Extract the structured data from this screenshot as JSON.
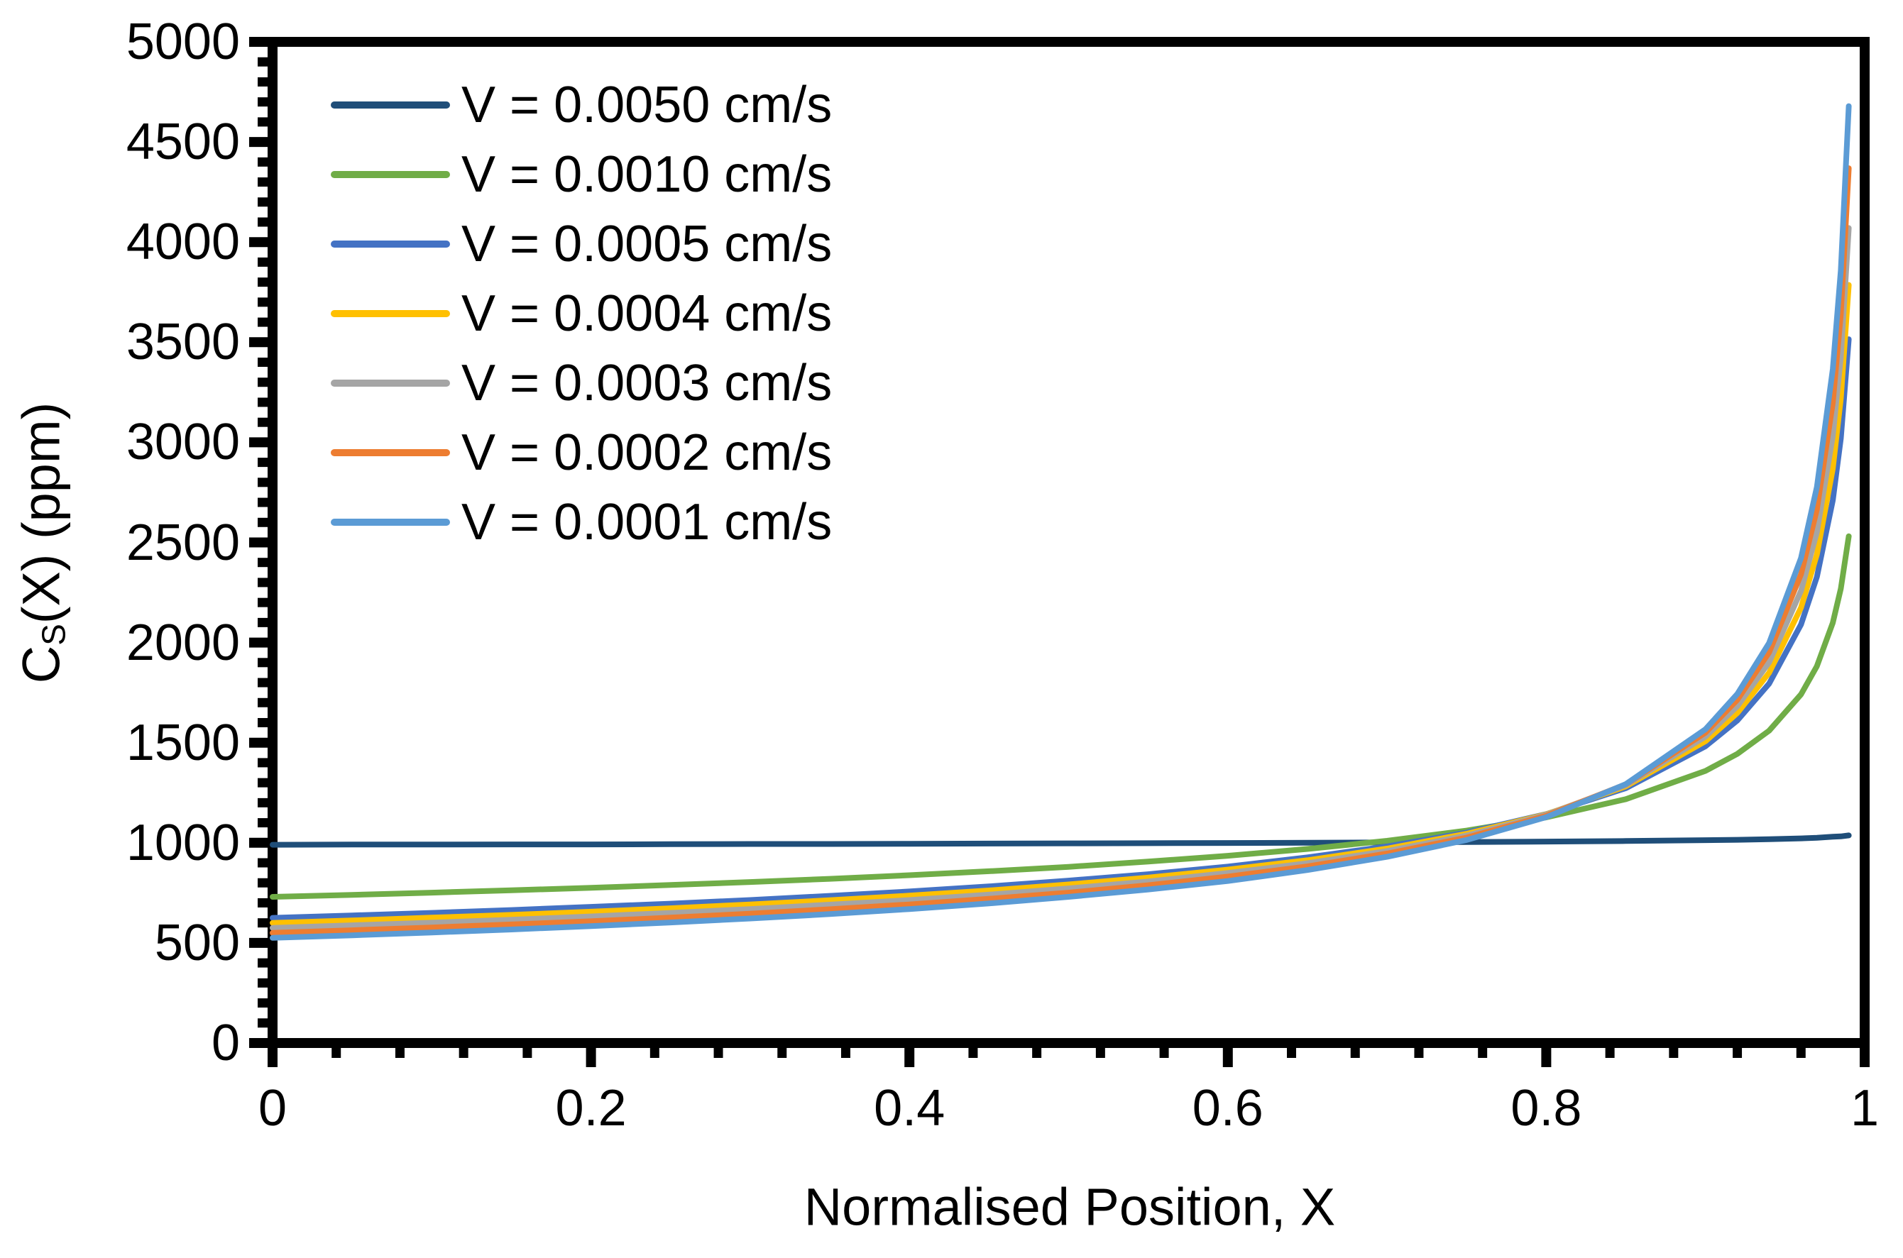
{
  "figure": {
    "background": "#FFFFFF",
    "text_color": "#000000",
    "axis_color": "#000000"
  },
  "y_axis": {
    "title_main": "C",
    "title_sub": "S",
    "title_rest": "(X) (ppm)",
    "tick_labels": [
      "0",
      "500",
      "1000",
      "1500",
      "2000",
      "2500",
      "3000",
      "3500",
      "4000",
      "4500",
      "5000"
    ]
  },
  "x_axis": {
    "title": "Normalised Position, X",
    "tick_labels": [
      "0",
      "0.2",
      "0.4",
      "0.6",
      "0.8",
      "1"
    ]
  },
  "legend": {
    "items": [
      {
        "label": "V = 0.0050 cm/s",
        "color": "#1F4E79"
      },
      {
        "label": "V = 0.0010 cm/s",
        "color": "#70AD47"
      },
      {
        "label": "V = 0.0005 cm/s",
        "color": "#4472C4"
      },
      {
        "label": "V = 0.0004 cm/s",
        "color": "#FFC000"
      },
      {
        "label": "V = 0.0003 cm/s",
        "color": "#A5A5A5"
      },
      {
        "label": "V = 0.0002 cm/s",
        "color": "#ED7D31"
      },
      {
        "label": "V = 0.0001 cm/s",
        "color": "#5B9BD5"
      }
    ]
  },
  "chart_data": {
    "type": "line",
    "title": "",
    "xlabel": "Normalised Position, X",
    "ylabel": "C_S(X) (ppm)",
    "xlim": [
      0,
      1
    ],
    "ylim": [
      0,
      5000
    ],
    "x_major_unit": 0.2,
    "x_minor_unit": 0.04,
    "y_major_unit": 500,
    "y_minor_unit": 100,
    "grid": false,
    "legend_position": "inside top-left",
    "x": [
      0,
      0.05,
      0.1,
      0.15,
      0.2,
      0.25,
      0.3,
      0.35,
      0.4,
      0.45,
      0.5,
      0.55,
      0.6,
      0.65,
      0.7,
      0.75,
      0.8,
      0.85,
      0.9,
      0.92,
      0.94,
      0.96,
      0.97,
      0.98,
      0.985,
      0.99
    ],
    "series": [
      {
        "name": "V = 0.0050 cm/s",
        "color": "#1F4E79",
        "values": [
          990,
          991,
          991,
          992,
          992,
          993,
          994,
          994,
          995,
          996,
          997,
          998,
          999,
          1000,
          1002,
          1004,
          1006,
          1009,
          1013,
          1015,
          1018,
          1022,
          1025,
          1030,
          1032,
          1037
        ]
      },
      {
        "name": "V = 0.0010 cm/s",
        "color": "#70AD47",
        "values": [
          730,
          740,
          751,
          763,
          775,
          789,
          804,
          820,
          838,
          858,
          880,
          906,
          935,
          969,
          1010,
          1061,
          1127,
          1218,
          1359,
          1444,
          1560,
          1741,
          1882,
          2099,
          2269,
          2531
        ]
      },
      {
        "name": "V = 0.0005 cm/s",
        "color": "#4472C4",
        "values": [
          625,
          637,
          650,
          664,
          680,
          696,
          714,
          735,
          757,
          782,
          811,
          843,
          881,
          927,
          982,
          1051,
          1143,
          1273,
          1482,
          1611,
          1795,
          2090,
          2328,
          2710,
          3019,
          3515
        ]
      },
      {
        "name": "V = 0.0004 cm/s",
        "color": "#FFC000",
        "values": [
          600,
          612,
          626,
          640,
          656,
          673,
          692,
          713,
          736,
          762,
          792,
          826,
          866,
          913,
          971,
          1045,
          1142,
          1282,
          1507,
          1648,
          1849,
          2174,
          2440,
          2869,
          3219,
          3786
        ]
      },
      {
        "name": "V = 0.0003 cm/s",
        "color": "#A5A5A5",
        "values": [
          575,
          588,
          601,
          616,
          632,
          650,
          669,
          691,
          714,
          741,
          772,
          807,
          849,
          898,
          959,
          1036,
          1140,
          1288,
          1530,
          1682,
          1901,
          2258,
          2552,
          3032,
          3426,
          4070
        ]
      },
      {
        "name": "V = 0.0002 cm/s",
        "color": "#ED7D31",
        "values": [
          550,
          563,
          577,
          592,
          608,
          626,
          646,
          668,
          692,
          720,
          751,
          788,
          831,
          882,
          946,
          1026,
          1135,
          1292,
          1550,
          1714,
          1951,
          2341,
          2665,
          3198,
          3640,
          4369
        ]
      },
      {
        "name": "V = 0.0001 cm/s",
        "color": "#5B9BD5",
        "values": [
          525,
          538,
          552,
          567,
          584,
          602,
          622,
          644,
          669,
          697,
          730,
          767,
          809,
          864,
          930,
          1014,
          1128,
          1293,
          1567,
          1743,
          1998,
          2422,
          2777,
          3366,
          3859,
          4679
        ]
      }
    ]
  }
}
